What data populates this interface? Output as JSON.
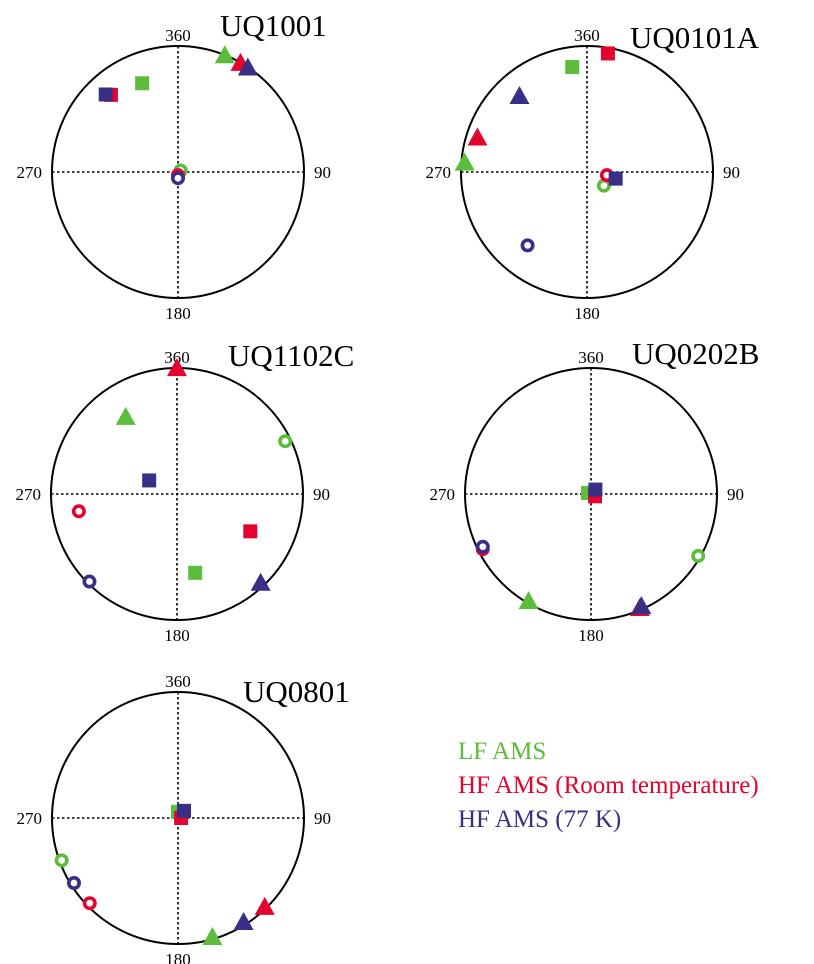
{
  "colors": {
    "lf": "#5cbc3b",
    "hf_room": "#e4032e",
    "hf_77k": "#3a2f86",
    "axis": "#000000"
  },
  "legend": [
    {
      "label": "LF AMS",
      "color": "#5cbc3b"
    },
    {
      "label": "HF AMS (Room temperature)",
      "color": "#e4032e"
    },
    {
      "label": "HF AMS (77 K)",
      "color": "#3a2f86"
    }
  ],
  "chart_data": [
    {
      "type": "scatter",
      "projection": "stereonet",
      "title": "UQ1001",
      "tick_labels": {
        "top": "360",
        "right": "90",
        "bottom": "180",
        "left": "270"
      },
      "points": [
        {
          "series": "LF",
          "axis": "max",
          "azimuth": 338,
          "plunge": 25
        },
        {
          "series": "LF",
          "axis": "int",
          "azimuth": 22,
          "plunge": 1
        },
        {
          "series": "LF",
          "axis": "min",
          "azimuth": 60,
          "plunge": 88
        },
        {
          "series": "HF_room",
          "axis": "max",
          "azimuth": 319,
          "plunge": 20
        },
        {
          "series": "HF_room",
          "axis": "int",
          "azimuth": 30,
          "plunge": 1
        },
        {
          "series": "HF_room",
          "axis": "min",
          "azimuth": 180,
          "plunge": 88
        },
        {
          "series": "HF_77K",
          "axis": "max",
          "azimuth": 317,
          "plunge": 17
        },
        {
          "series": "HF_77K",
          "axis": "int",
          "azimuth": 34,
          "plunge": 1
        },
        {
          "series": "HF_77K",
          "axis": "min",
          "azimuth": 180,
          "plunge": 86
        }
      ]
    },
    {
      "type": "scatter",
      "projection": "stereonet",
      "title": "UQ0101A",
      "tick_labels": {
        "top": "360",
        "right": "90",
        "bottom": "180",
        "left": "270"
      },
      "points": [
        {
          "series": "LF",
          "axis": "max",
          "azimuth": 352,
          "plunge": 17
        },
        {
          "series": "LF",
          "axis": "int",
          "azimuth": 274,
          "plunge": 3
        },
        {
          "series": "LF",
          "axis": "min",
          "azimuth": 129,
          "plunge": 76
        },
        {
          "series": "HF_room",
          "axis": "max",
          "azimuth": 10,
          "plunge": 5
        },
        {
          "series": "HF_room",
          "axis": "int",
          "azimuth": 287,
          "plunge": 10
        },
        {
          "series": "HF_room",
          "axis": "min",
          "azimuth": 99,
          "plunge": 77
        },
        {
          "series": "HF_77K",
          "axis": "max",
          "azimuth": 103,
          "plunge": 71
        },
        {
          "series": "HF_77K",
          "axis": "int",
          "azimuth": 318,
          "plunge": 21
        },
        {
          "series": "HF_77K",
          "axis": "min",
          "azimuth": 219,
          "plunge": 26
        }
      ]
    },
    {
      "type": "scatter",
      "projection": "stereonet",
      "title": "UQ1102C",
      "tick_labels": {
        "top": "360",
        "right": "90",
        "bottom": "180",
        "left": "270"
      },
      "points": [
        {
          "series": "LF",
          "axis": "max",
          "azimuth": 167,
          "plunge": 36
        },
        {
          "series": "LF",
          "axis": "int",
          "azimuth": 326,
          "plunge": 28
        },
        {
          "series": "LF",
          "axis": "min",
          "azimuth": 64,
          "plunge": 5
        },
        {
          "series": "HF_room",
          "axis": "max",
          "azimuth": 117,
          "plunge": 35
        },
        {
          "series": "HF_room",
          "axis": "int",
          "azimuth": 360,
          "plunge": 1
        },
        {
          "series": "HF_room",
          "axis": "min",
          "azimuth": 260,
          "plunge": 22
        },
        {
          "series": "HF_77K",
          "axis": "max",
          "azimuth": 296,
          "plunge": 70
        },
        {
          "series": "HF_77K",
          "axis": "int",
          "azimuth": 137,
          "plunge": 3
        },
        {
          "series": "HF_77K",
          "axis": "min",
          "azimuth": 225,
          "plunge": 2
        }
      ]
    },
    {
      "type": "scatter",
      "projection": "stereonet",
      "title": "UQ0202B",
      "tick_labels": {
        "top": "360",
        "right": "90",
        "bottom": "180",
        "left": "270"
      },
      "points": [
        {
          "series": "LF",
          "axis": "max",
          "azimuth": 288,
          "plunge": 88
        },
        {
          "series": "LF",
          "axis": "int",
          "azimuth": 210,
          "plunge": 1
        },
        {
          "series": "LF",
          "axis": "min",
          "azimuth": 120,
          "plunge": 2
        },
        {
          "series": "HF_room",
          "axis": "max",
          "azimuth": 120,
          "plunge": 87
        },
        {
          "series": "HF_room",
          "axis": "int",
          "azimuth": 157,
          "plunge": 1
        },
        {
          "series": "HF_room",
          "axis": "min",
          "azimuth": 243,
          "plunge": 4
        },
        {
          "series": "HF_77K",
          "axis": "max",
          "azimuth": 45,
          "plunge": 86
        },
        {
          "series": "HF_77K",
          "axis": "int",
          "azimuth": 156,
          "plunge": 2
        },
        {
          "series": "HF_77K",
          "axis": "min",
          "azimuth": 244,
          "plunge": 5
        }
      ]
    },
    {
      "type": "scatter",
      "projection": "stereonet",
      "title": "UQ0801",
      "tick_labels": {
        "top": "360",
        "right": "90",
        "bottom": "180",
        "left": "270"
      },
      "points": [
        {
          "series": "LF",
          "axis": "max",
          "azimuth": 0,
          "plunge": 86
        },
        {
          "series": "LF",
          "axis": "int",
          "azimuth": 164,
          "plunge": 1
        },
        {
          "series": "LF",
          "axis": "min",
          "azimuth": 250,
          "plunge": 2
        },
        {
          "series": "HF_room",
          "axis": "max",
          "azimuth": 90,
          "plunge": 88
        },
        {
          "series": "HF_room",
          "axis": "int",
          "azimuth": 136,
          "plunge": 1
        },
        {
          "series": "HF_room",
          "axis": "min",
          "azimuth": 226,
          "plunge": 3
        },
        {
          "series": "HF_77K",
          "axis": "max",
          "azimuth": 40,
          "plunge": 84
        },
        {
          "series": "HF_77K",
          "axis": "int",
          "azimuth": 148,
          "plunge": 2
        },
        {
          "series": "HF_77K",
          "axis": "min",
          "azimuth": 238,
          "plunge": 3
        }
      ]
    }
  ]
}
